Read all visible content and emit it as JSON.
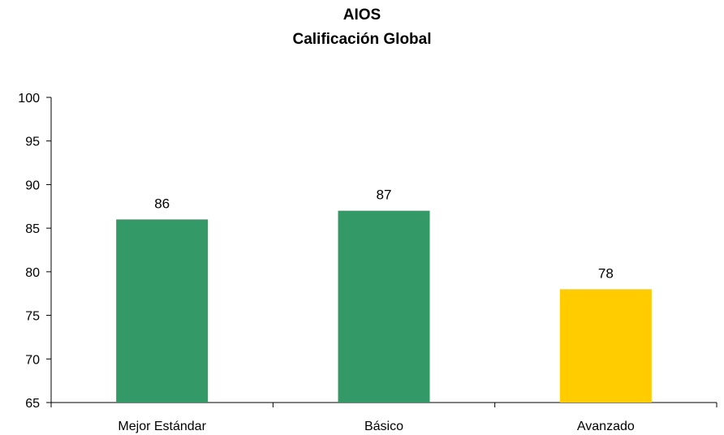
{
  "chart_data": {
    "type": "bar",
    "title": "AIOS",
    "subtitle": "Calificación Global",
    "xlabel": "",
    "ylabel": "",
    "categories": [
      "Mejor Estándar",
      "Básico",
      "Avanzado"
    ],
    "values": [
      86,
      87,
      78
    ],
    "colors": [
      "#339966",
      "#339966",
      "#FFCC00"
    ],
    "ylim": [
      65,
      100
    ],
    "yticks": [
      65,
      70,
      75,
      80,
      85,
      90,
      95,
      100
    ],
    "grid": false,
    "legend": "none"
  }
}
